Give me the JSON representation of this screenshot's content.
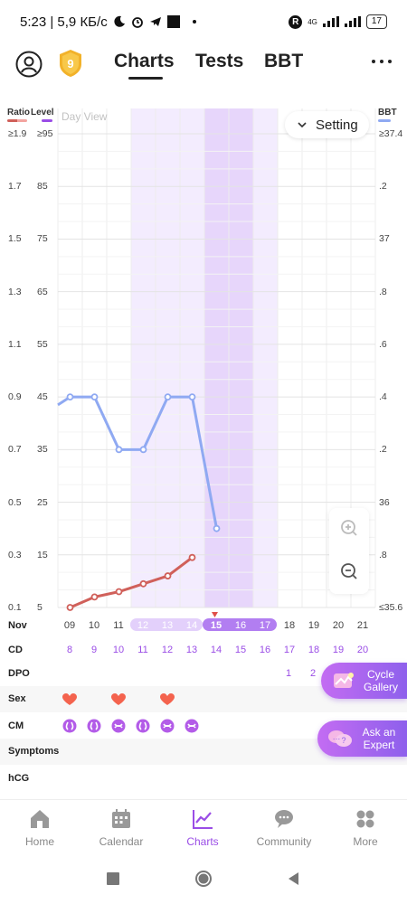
{
  "status_bar": {
    "time_speed": "5:23 | 5,9 КБ/с",
    "network": "4G",
    "battery": "17"
  },
  "header": {
    "badge_level": "9",
    "tabs": [
      "Charts",
      "Tests",
      "BBT"
    ],
    "active_tab": "Charts"
  },
  "chart": {
    "left_header_ratio": "Ratio",
    "left_header_level": "Level",
    "right_header": "BBT",
    "day_view_label": "Day View",
    "setting_label": "Setting",
    "ratio_ticks": [
      "≥1.9",
      "1.7",
      "1.5",
      "1.3",
      "1.1",
      "0.9",
      "0.7",
      "0.5",
      "0.3",
      "0.1"
    ],
    "level_ticks": [
      "≥95",
      "85",
      "75",
      "65",
      "55",
      "45",
      "35",
      "25",
      "15",
      "5"
    ],
    "bbt_ticks": [
      "≥37.4",
      ".2",
      "37",
      ".8",
      ".6",
      ".4",
      ".2",
      "36",
      ".8",
      "≤35.6"
    ],
    "colors": {
      "ratio": "#d0605a",
      "level": "#8fa9f2",
      "bbt": "#8fa9f2",
      "fertile_light": "#f3ecfe",
      "fertile_dark": "#e7d6fb",
      "accent": "#9a4de6"
    }
  },
  "chart_data": {
    "type": "line",
    "x": [
      "09",
      "10",
      "11",
      "12",
      "13",
      "14",
      "15",
      "16",
      "17",
      "18",
      "19",
      "20",
      "21"
    ],
    "series": [
      {
        "name": "Level",
        "x": [
          "08",
          "09",
          "10",
          "11",
          "12",
          "13",
          "14",
          "15"
        ],
        "values": [
          42,
          45,
          45,
          35,
          35,
          45,
          45,
          20
        ]
      },
      {
        "name": "Ratio",
        "x": [
          "09",
          "10",
          "11",
          "12",
          "13",
          "14"
        ],
        "values": [
          0.1,
          0.14,
          0.16,
          0.19,
          0.22,
          0.29
        ]
      }
    ],
    "ylim_level": [
      5,
      95
    ],
    "ylim_ratio": [
      0.1,
      1.9
    ],
    "ylim_bbt": [
      35.6,
      37.4
    ],
    "grid": true,
    "highlight_days_light": [
      "12",
      "13",
      "14"
    ],
    "highlight_days_dark": [
      "15",
      "16"
    ],
    "highlight_days_light_after": [
      "17"
    ]
  },
  "rows": {
    "nov_label": "Nov",
    "nov_days": [
      "09",
      "10",
      "11",
      "12",
      "13",
      "14",
      "15",
      "16",
      "17",
      "18",
      "19",
      "20",
      "21"
    ],
    "cd_label": "CD",
    "cd_values": [
      "8",
      "9",
      "10",
      "11",
      "12",
      "13",
      "14",
      "15",
      "16",
      "17",
      "18",
      "19",
      "20"
    ],
    "dpo_label": "DPO",
    "dpo_values": [
      "1",
      "2"
    ],
    "sex_label": "Sex",
    "cm_label": "CM",
    "symptoms_label": "Symptoms",
    "hcg_label": "hCG"
  },
  "side_buttons": {
    "cycle_gallery": "Cycle Gallery",
    "ask_expert": "Ask an Expert"
  },
  "bottom_nav": {
    "items": [
      "Home",
      "Calendar",
      "Charts",
      "Community",
      "More"
    ],
    "active": "Charts"
  }
}
